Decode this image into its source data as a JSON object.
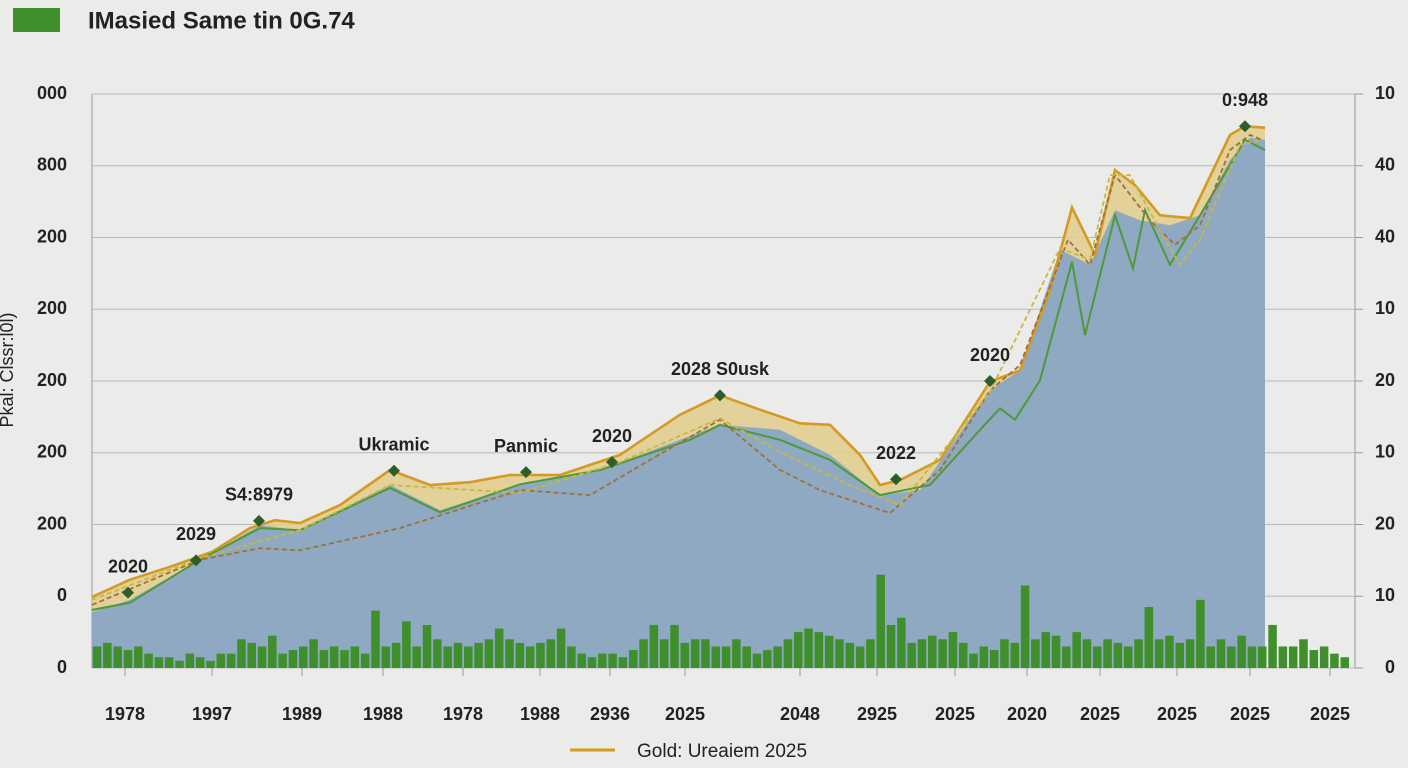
{
  "chart_data": {
    "type": "area",
    "title": "IMasied Same tin 0G.74",
    "ylabel": "Pkal: Clssr:l0l)",
    "title_color": "#3f8f2c",
    "xlim": [
      0,
      1263
    ],
    "xticks": [
      {
        "value": 33,
        "label": "1978"
      },
      {
        "value": 120,
        "label": "1997"
      },
      {
        "value": 210,
        "label": "1989"
      },
      {
        "value": 291,
        "label": "1988"
      },
      {
        "value": 371,
        "label": "1978"
      },
      {
        "value": 448,
        "label": "1988"
      },
      {
        "value": 518,
        "label": "2936"
      },
      {
        "value": 593,
        "label": "2025"
      },
      {
        "value": 708,
        "label": "2048"
      },
      {
        "value": 785,
        "label": "2925"
      },
      {
        "value": 863,
        "label": "2025"
      },
      {
        "value": 935,
        "label": "2020"
      },
      {
        "value": 1008,
        "label": "2025"
      },
      {
        "value": 1085,
        "label": "2025"
      },
      {
        "value": 1158,
        "label": "2025"
      },
      {
        "value": 1238,
        "label": "2025"
      }
    ],
    "ylim": [
      0,
      800
    ],
    "yticks": [
      0,
      {
        "value": 100,
        "label": "0"
      },
      200,
      {
        "value": 300,
        "label": "200"
      },
      {
        "value": 400,
        "label": "200"
      },
      {
        "value": 500,
        "label": "200"
      },
      {
        "value": 600,
        "label": "200"
      },
      {
        "value": 700,
        "label": "800"
      },
      {
        "value": 800,
        "label": "000"
      }
    ],
    "y2lim": [
      0,
      80
    ],
    "y2ticks": [
      0,
      10,
      20,
      {
        "value": 30,
        "label": "10"
      },
      {
        "value": 40,
        "label": "20"
      },
      {
        "value": 50,
        "label": "10"
      },
      {
        "value": 60,
        "label": "40"
      },
      {
        "value": 70,
        "label": "40"
      },
      {
        "value": 80,
        "label": "10"
      }
    ],
    "grid": true,
    "legend": "bottom",
    "series": [
      {
        "style": "area",
        "color": "#8ea9c1",
        "x": [
          0,
          38,
          108,
          168,
          208,
          298,
          348,
          428,
          508,
          588,
          628,
          688,
          738,
          788,
          828,
          898,
          928,
          968,
          998,
          1023,
          1048,
          1078,
          1108,
          1138,
          1158,
          1173
        ],
        "values": [
          78,
          95,
          151,
          199,
          192,
          255,
          220,
          255,
          276,
          318,
          339,
          332,
          297,
          241,
          248,
          387,
          415,
          583,
          562,
          638,
          624,
          617,
          631,
          708,
          739,
          736
        ]
      },
      {
        "style": "line",
        "name": "Gold: Ureaiem 2025",
        "color": "#d49a22",
        "fill": "#e2cd8c",
        "x": [
          0,
          38,
          78,
          120,
          158,
          183,
          208,
          248,
          298,
          338,
          378,
          418,
          468,
          528,
          588,
          628,
          668,
          708,
          738,
          768,
          788,
          808,
          848,
          898,
          928,
          958,
          980,
          1003,
          1023,
          1043,
          1068,
          1098,
          1138,
          1153,
          1173
        ],
        "values": [
          99,
          123,
          141,
          162,
          195,
          206,
          202,
          227,
          276,
          255,
          259,
          269,
          269,
          297,
          353,
          380,
          360,
          341,
          339,
          297,
          255,
          262,
          290,
          399,
          415,
          527,
          642,
          576,
          694,
          673,
          631,
          627,
          743,
          755,
          753
        ]
      },
      {
        "style": "line",
        "color": "#4e9a3a",
        "x": [
          0,
          38,
          108,
          168,
          208,
          298,
          348,
          428,
          508,
          598,
          628,
          688,
          738,
          788,
          838,
          888,
          908,
          923,
          948,
          980,
          993,
          1023,
          1041,
          1053,
          1078,
          1108,
          1153,
          1173
        ],
        "values": [
          81,
          91,
          151,
          195,
          192,
          251,
          217,
          256,
          276,
          318,
          339,
          318,
          290,
          241,
          255,
          332,
          362,
          346,
          401,
          566,
          464,
          631,
          557,
          638,
          562,
          631,
          736,
          722
        ]
      },
      {
        "style": "dashed",
        "color": "#a0703a",
        "x": [
          0,
          108,
          168,
          208,
          308,
          428,
          498,
          558,
          628,
          688,
          728,
          798,
          848,
          898,
          928,
          976,
          998,
          1023,
          1058,
          1083,
          1108,
          1138,
          1158,
          1170
        ],
        "values": [
          88,
          151,
          167,
          164,
          195,
          248,
          241,
          290,
          346,
          276,
          248,
          216,
          276,
          387,
          422,
          597,
          562,
          687,
          624,
          590,
          617,
          722,
          743,
          736
        ]
      },
      {
        "style": "dashed",
        "color": "#c8b840",
        "x": [
          0,
          108,
          208,
          298,
          428,
          528,
          628,
          688,
          758,
          808,
          898,
          968,
          998,
          1018,
          1038,
          1068,
          1088,
          1108,
          1148,
          1170
        ],
        "values": [
          95,
          153,
          192,
          255,
          244,
          287,
          348,
          301,
          255,
          227,
          385,
          585,
          569,
          687,
          687,
          610,
          562,
          597,
          729,
          736
        ]
      }
    ],
    "bars": {
      "color": "#3f8f2c",
      "axis": "y2",
      "values": [
        3,
        3.5,
        3,
        2.5,
        3,
        2,
        1.5,
        1.5,
        1,
        2,
        1.5,
        1,
        2,
        2,
        4,
        3.5,
        3,
        4.5,
        2,
        2.5,
        3,
        4,
        2.5,
        3,
        2.5,
        3,
        2,
        8,
        3,
        3.5,
        6.5,
        3,
        6,
        4,
        3,
        3.5,
        3,
        3.5,
        4,
        5.5,
        4,
        3.5,
        3,
        3.5,
        4,
        5.5,
        3,
        2,
        1.5,
        2,
        2,
        1.5,
        2.5,
        4,
        6,
        4,
        6,
        3.5,
        4,
        4,
        3,
        3,
        4,
        3,
        2,
        2.5,
        3,
        4,
        5,
        5.5,
        5,
        4.5,
        4,
        3.5,
        3,
        4,
        13,
        6,
        7,
        3.5,
        4,
        4.5,
        4,
        5,
        3.5,
        2,
        3,
        2.5,
        4,
        3.5,
        11.5,
        4,
        5,
        4.5,
        3,
        5,
        4,
        3,
        4,
        3.5,
        3,
        4,
        8.5,
        4,
        4.5,
        3.5,
        4,
        9.5,
        3,
        4,
        3,
        4.5,
        3,
        3,
        6,
        3,
        3,
        4,
        2.5,
        3,
        2,
        1.5
      ]
    },
    "annotations": [
      {
        "text": "2020",
        "x": 36,
        "y": 105,
        "color": "#2d5e2a"
      },
      {
        "text": "2029",
        "x": 104,
        "y": 150,
        "color": "#2d5e2a"
      },
      {
        "text": "S4:8979",
        "x": 167,
        "y": 205,
        "color": "#2d5e2a"
      },
      {
        "text": "Ukramic",
        "x": 302,
        "y": 275,
        "color": "#2d5e2a"
      },
      {
        "text": "Panmic",
        "x": 434,
        "y": 273,
        "color": "#2d5e2a"
      },
      {
        "text": "2020",
        "x": 520,
        "y": 287,
        "color": "#2d5e2a"
      },
      {
        "text": "2028 S0usk",
        "x": 628,
        "y": 380,
        "color": "#2d5e2a"
      },
      {
        "text": "2022",
        "x": 804,
        "y": 263,
        "color": "#2d5e2a"
      },
      {
        "text": "2020",
        "x": 898,
        "y": 400,
        "color": "#2d5e2a"
      },
      {
        "text": "0:948",
        "x": 1153,
        "y": 755,
        "color": "#2d5e2a"
      }
    ]
  }
}
